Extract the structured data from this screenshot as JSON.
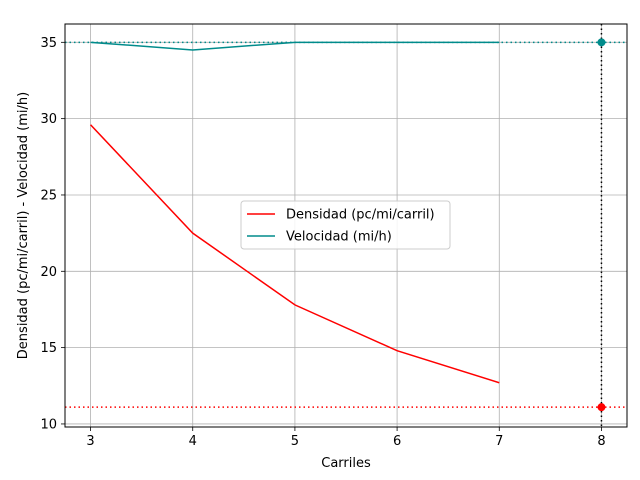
{
  "chart_data": {
    "type": "line",
    "xlabel": "Carriles",
    "ylabel": "Densidad (pc/mi/carril) - Velocidad (mi/h)",
    "xlim": [
      2.75,
      8.25
    ],
    "ylim": [
      9.8,
      36.2
    ],
    "xticks": [
      "3",
      "4",
      "5",
      "6",
      "7",
      "8"
    ],
    "yticks": [
      "10",
      "15",
      "20",
      "25",
      "30",
      "35"
    ],
    "grid": true,
    "legend_position": "center",
    "x": [
      3,
      4,
      5,
      6,
      7
    ],
    "series": [
      {
        "name": "Densidad (pc/mi/carril)",
        "color": "#ff0000",
        "values": [
          29.6,
          22.5,
          17.8,
          14.8,
          12.7
        ]
      },
      {
        "name": "Velocidad (mi/h)",
        "color": "#008b8b",
        "values": [
          35.0,
          34.5,
          35.0,
          35.0,
          35.0
        ]
      }
    ],
    "reference_lines": {
      "vertical_x": 8,
      "vertical_color": "#000000",
      "horizontal": [
        {
          "y": 11.1,
          "color": "#ff0000"
        },
        {
          "y": 35.0,
          "color": "#008b8b"
        }
      ]
    },
    "highlight_points": [
      {
        "x": 8,
        "y": 11.1,
        "color": "#ff0000"
      },
      {
        "x": 8,
        "y": 35.0,
        "color": "#008b8b"
      }
    ]
  }
}
